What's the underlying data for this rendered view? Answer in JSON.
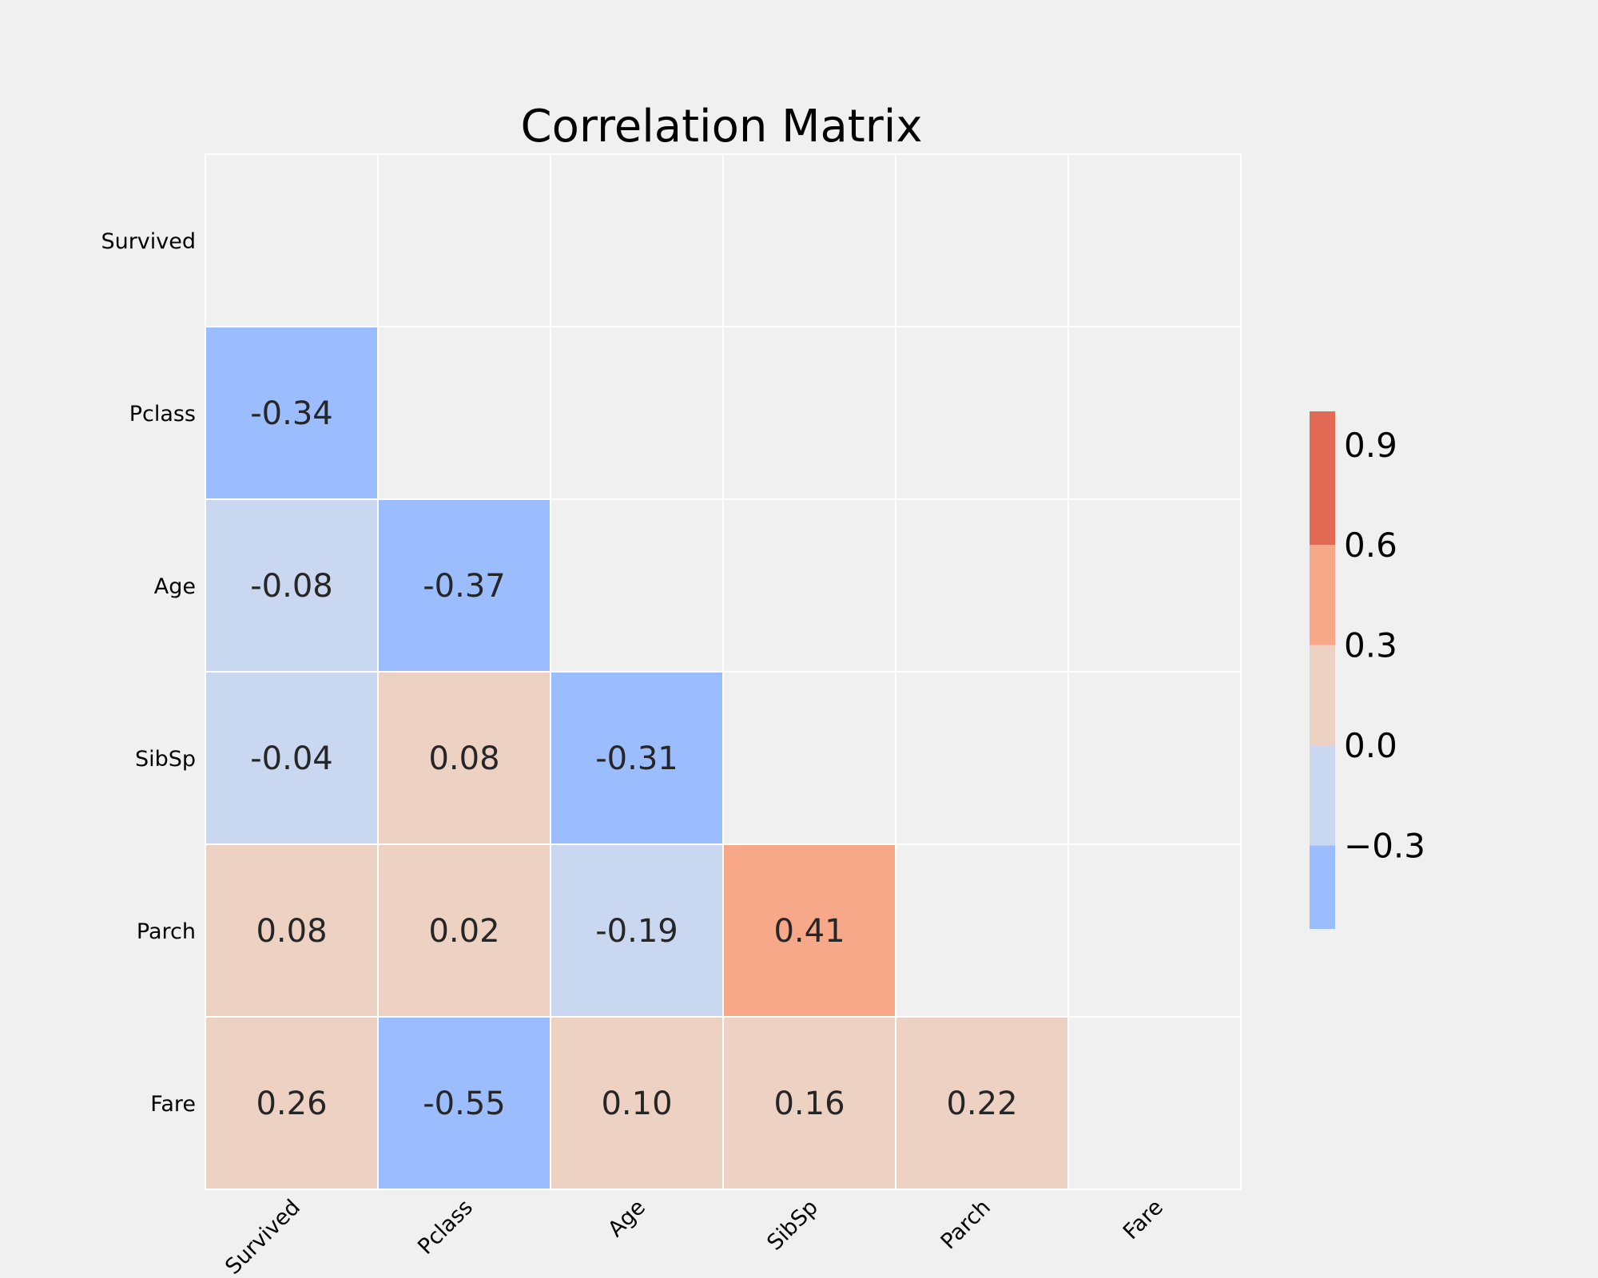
{
  "chart_data": {
    "type": "heatmap",
    "title": "Correlation Matrix",
    "variables": [
      "Survived",
      "Pclass",
      "Age",
      "SibSp",
      "Parch",
      "Fare"
    ],
    "mask": "upper-triangle-including-diagonal",
    "cells": [
      {
        "row": "Pclass",
        "col": "Survived",
        "value": -0.34,
        "label": "-0.34"
      },
      {
        "row": "Age",
        "col": "Survived",
        "value": -0.08,
        "label": "-0.08"
      },
      {
        "row": "Age",
        "col": "Pclass",
        "value": -0.37,
        "label": "-0.37"
      },
      {
        "row": "SibSp",
        "col": "Survived",
        "value": -0.04,
        "label": "-0.04"
      },
      {
        "row": "SibSp",
        "col": "Pclass",
        "value": 0.08,
        "label": "0.08"
      },
      {
        "row": "SibSp",
        "col": "Age",
        "value": -0.31,
        "label": "-0.31"
      },
      {
        "row": "Parch",
        "col": "Survived",
        "value": 0.08,
        "label": "0.08"
      },
      {
        "row": "Parch",
        "col": "Pclass",
        "value": 0.02,
        "label": "0.02"
      },
      {
        "row": "Parch",
        "col": "Age",
        "value": -0.19,
        "label": "-0.19"
      },
      {
        "row": "Parch",
        "col": "SibSp",
        "value": 0.41,
        "label": "0.41"
      },
      {
        "row": "Fare",
        "col": "Survived",
        "value": 0.26,
        "label": "0.26"
      },
      {
        "row": "Fare",
        "col": "Pclass",
        "value": -0.55,
        "label": "-0.55"
      },
      {
        "row": "Fare",
        "col": "Age",
        "value": 0.1,
        "label": "0.10"
      },
      {
        "row": "Fare",
        "col": "SibSp",
        "value": 0.16,
        "label": "0.16"
      },
      {
        "row": "Fare",
        "col": "Parch",
        "value": 0.22,
        "label": "0.22"
      }
    ],
    "colorbar": {
      "range": [
        -0.55,
        1.0
      ],
      "bins": [
        {
          "from": -0.55,
          "to": -0.3,
          "color": "#9bbcff"
        },
        {
          "from": -0.3,
          "to": 0.0,
          "color": "#c9d7f0"
        },
        {
          "from": 0.0,
          "to": 0.3,
          "color": "#edd1c2"
        },
        {
          "from": 0.3,
          "to": 0.6,
          "color": "#f7a889"
        },
        {
          "from": 0.6,
          "to": 1.0,
          "color": "#e36b55"
        }
      ],
      "ticks": [
        {
          "value": 0.9,
          "label": "0.9"
        },
        {
          "value": 0.6,
          "label": "0.6"
        },
        {
          "value": 0.3,
          "label": "0.3"
        },
        {
          "value": 0.0,
          "label": "0.0"
        },
        {
          "value": -0.3,
          "label": "−0.3"
        }
      ],
      "placement": "right"
    },
    "grid": true,
    "background_color": "#f0f0f0",
    "grid_color": "#ffffff"
  }
}
